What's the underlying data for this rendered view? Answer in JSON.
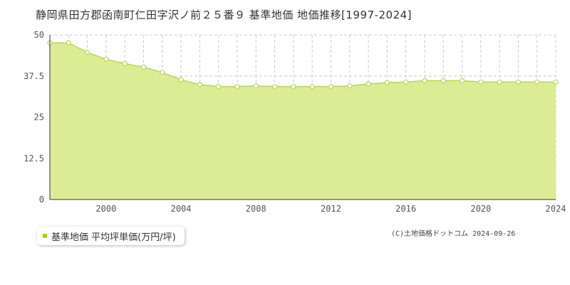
{
  "page": {
    "title": "静岡県田方郡函南町仁田字沢ノ前２５番９ 基準地価 地価推移[1997-2024]",
    "copyright": "(C)土地価格ドットコム 2024-09-26"
  },
  "legend": {
    "label": "基準地価 平均坪単価(万円/坪)",
    "marker_color": "#a0d911"
  },
  "colors": {
    "fill": "#dcec94",
    "line": "#b6d65a",
    "point_fill": "#ffffff",
    "grid": "#cccccc",
    "axis": "#333333"
  },
  "chart_data": {
    "type": "area",
    "title": "静岡県田方郡函南町仁田字沢ノ前２５番９ 基準地価 地価推移[1997-2024]",
    "xlabel": "",
    "ylabel": "",
    "xlim": [
      1997,
      2024
    ],
    "ylim": [
      0,
      50
    ],
    "yticks": [
      0,
      12.5,
      25,
      37.5,
      50
    ],
    "ytick_labels": [
      "0",
      "12.5",
      "25",
      "37.5",
      "50"
    ],
    "xticks": [
      2000,
      2004,
      2008,
      2012,
      2016,
      2020,
      2024
    ],
    "xtick_labels": [
      "2000",
      "2004",
      "2008",
      "2012",
      "2016",
      "2020",
      "2024"
    ],
    "grid": true,
    "legend_position": "bottom-left",
    "series": [
      {
        "name": "基準地価 平均坪単価(万円/坪)",
        "x": [
          1997,
          1998,
          1999,
          2000,
          2001,
          2002,
          2003,
          2004,
          2005,
          2006,
          2007,
          2008,
          2009,
          2010,
          2011,
          2012,
          2013,
          2014,
          2015,
          2016,
          2017,
          2018,
          2019,
          2020,
          2021,
          2022,
          2023,
          2024
        ],
        "values": [
          47.6,
          47.6,
          44.7,
          42.6,
          41.3,
          40.2,
          38.6,
          36.4,
          34.9,
          34.3,
          34.3,
          34.5,
          34.3,
          34.3,
          34.3,
          34.3,
          34.5,
          35.1,
          35.5,
          35.7,
          36.1,
          36.1,
          36.1,
          35.7,
          35.7,
          35.7,
          35.7,
          35.7
        ]
      }
    ]
  }
}
